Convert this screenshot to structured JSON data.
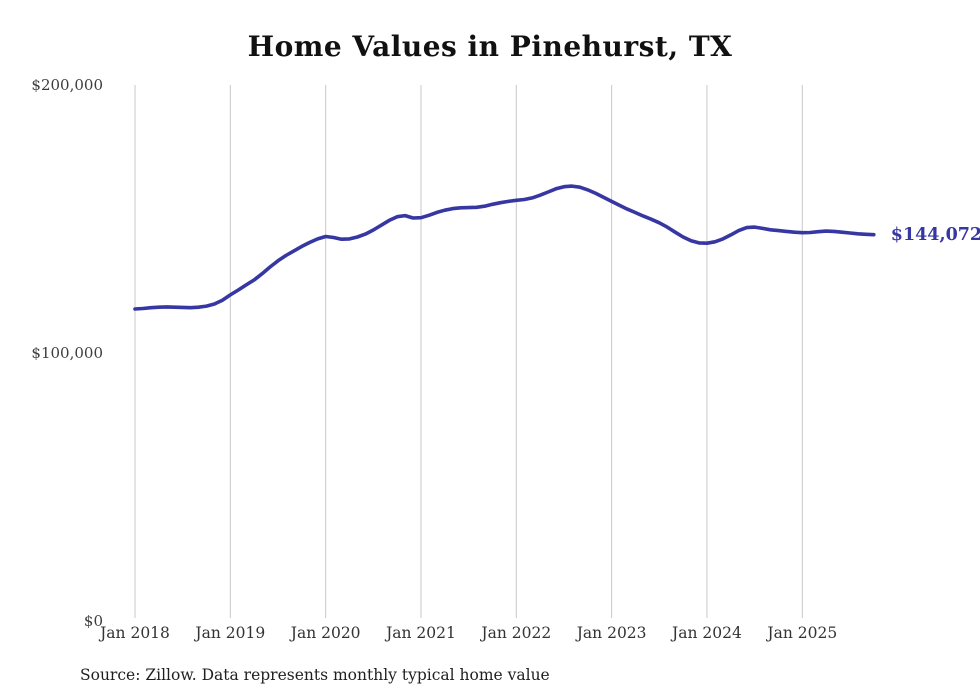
{
  "title": "Home Values in Pinehurst, TX",
  "source_note": "Source: Zillow. Data represents monthly typical home value",
  "end_label": "$144,072",
  "colors": {
    "line": "#3737a3",
    "grid": "#c9c9c9",
    "ytick_text": "#3d3d3d",
    "xtick_text": "#333333",
    "title_text": "#111111",
    "source_text": "#1f1f1f"
  },
  "chart_data": {
    "type": "line",
    "title": "Home Values in Pinehurst, TX",
    "series_name": "Monthly typical home value (Zillow)",
    "ylim": [
      0,
      200000
    ],
    "grid": "vertical-only",
    "legend": "none",
    "end_annotation": "$144,072",
    "yticks": [
      {
        "value": 0,
        "label": "$0"
      },
      {
        "value": 100000,
        "label": "$100,000"
      },
      {
        "value": 200000,
        "label": "$200,000"
      }
    ],
    "xticks": [
      "Jan 2018",
      "Jan 2019",
      "Jan 2020",
      "Jan 2021",
      "Jan 2022",
      "Jan 2023",
      "Jan 2024",
      "Jan 2025"
    ],
    "x": [
      "2018-01",
      "2018-02",
      "2018-03",
      "2018-04",
      "2018-05",
      "2018-06",
      "2018-07",
      "2018-08",
      "2018-09",
      "2018-10",
      "2018-11",
      "2018-12",
      "2019-01",
      "2019-02",
      "2019-03",
      "2019-04",
      "2019-05",
      "2019-06",
      "2019-07",
      "2019-08",
      "2019-09",
      "2019-10",
      "2019-11",
      "2019-12",
      "2020-01",
      "2020-02",
      "2020-03",
      "2020-04",
      "2020-05",
      "2020-06",
      "2020-07",
      "2020-08",
      "2020-09",
      "2020-10",
      "2020-11",
      "2020-12",
      "2021-01",
      "2021-02",
      "2021-03",
      "2021-04",
      "2021-05",
      "2021-06",
      "2021-07",
      "2021-08",
      "2021-09",
      "2021-10",
      "2021-11",
      "2021-12",
      "2022-01",
      "2022-02",
      "2022-03",
      "2022-04",
      "2022-05",
      "2022-06",
      "2022-07",
      "2022-08",
      "2022-09",
      "2022-10",
      "2022-11",
      "2022-12",
      "2023-01",
      "2023-02",
      "2023-03",
      "2023-04",
      "2023-05",
      "2023-06",
      "2023-07",
      "2023-08",
      "2023-09",
      "2023-10",
      "2023-11",
      "2023-12",
      "2024-01",
      "2024-02",
      "2024-03",
      "2024-04",
      "2024-05",
      "2024-06",
      "2024-07",
      "2024-08",
      "2024-09",
      "2024-10",
      "2024-11",
      "2024-12",
      "2025-01",
      "2025-02",
      "2025-03",
      "2025-04",
      "2025-05",
      "2025-06",
      "2025-07",
      "2025-08",
      "2025-09",
      "2025-10"
    ],
    "values": [
      116300,
      116500,
      116800,
      117000,
      117100,
      117000,
      116900,
      116800,
      117000,
      117400,
      118200,
      119600,
      121600,
      123400,
      125300,
      127200,
      129500,
      132000,
      134300,
      136300,
      138000,
      139700,
      141200,
      142500,
      143400,
      143000,
      142400,
      142500,
      143200,
      144300,
      145800,
      147600,
      149400,
      150800,
      151200,
      150300,
      150400,
      151300,
      152400,
      153200,
      153800,
      154100,
      154200,
      154300,
      154700,
      155400,
      156000,
      156500,
      156900,
      157200,
      157800,
      158800,
      160000,
      161200,
      162000,
      162200,
      161800,
      160800,
      159500,
      158000,
      156500,
      155000,
      153600,
      152300,
      151000,
      149800,
      148500,
      146900,
      145000,
      143200,
      141800,
      141000,
      140900,
      141400,
      142500,
      144000,
      145600,
      146700,
      146900,
      146400,
      145900,
      145600,
      145300,
      145000,
      144800,
      144900,
      145200,
      145400,
      145300,
      145000,
      144700,
      144400,
      144200,
      144072
    ]
  },
  "layout_numbers": {
    "final_value": 144072
  }
}
